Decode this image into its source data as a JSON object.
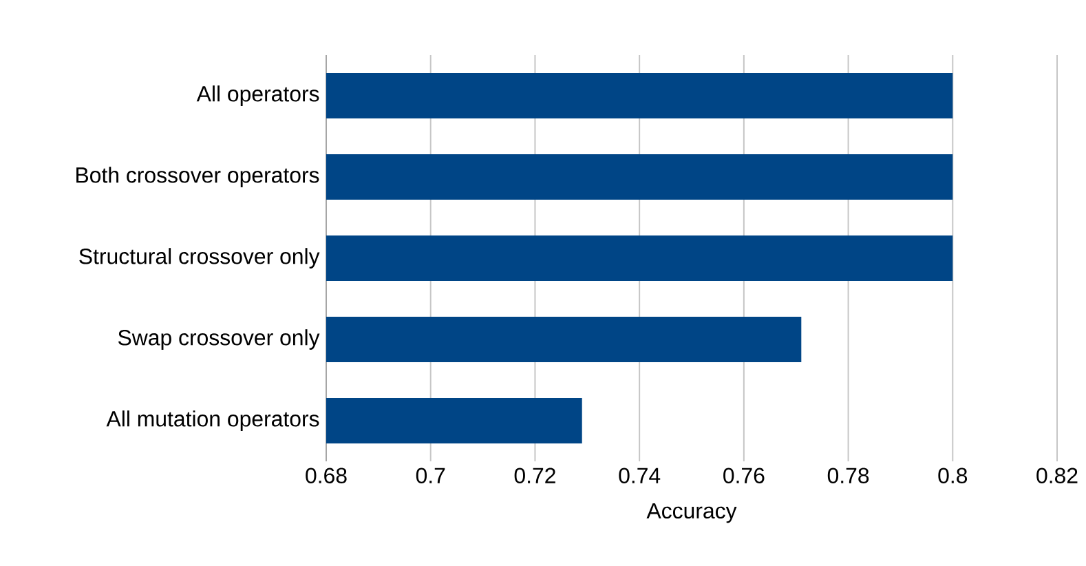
{
  "chart_data": {
    "type": "bar",
    "orientation": "horizontal",
    "xlabel": "Accuracy",
    "categories": [
      "All operators",
      "Both crossover operators",
      "Structural crossover only",
      "Swap crossover only",
      "All mutation operators"
    ],
    "values": [
      0.8,
      0.8,
      0.8,
      0.771,
      0.729
    ],
    "color": "#004586",
    "xlim": [
      0.68,
      0.82
    ],
    "xticks": [
      0.68,
      0.7,
      0.72,
      0.74,
      0.76,
      0.78,
      0.8,
      0.82
    ],
    "grid": "x"
  }
}
